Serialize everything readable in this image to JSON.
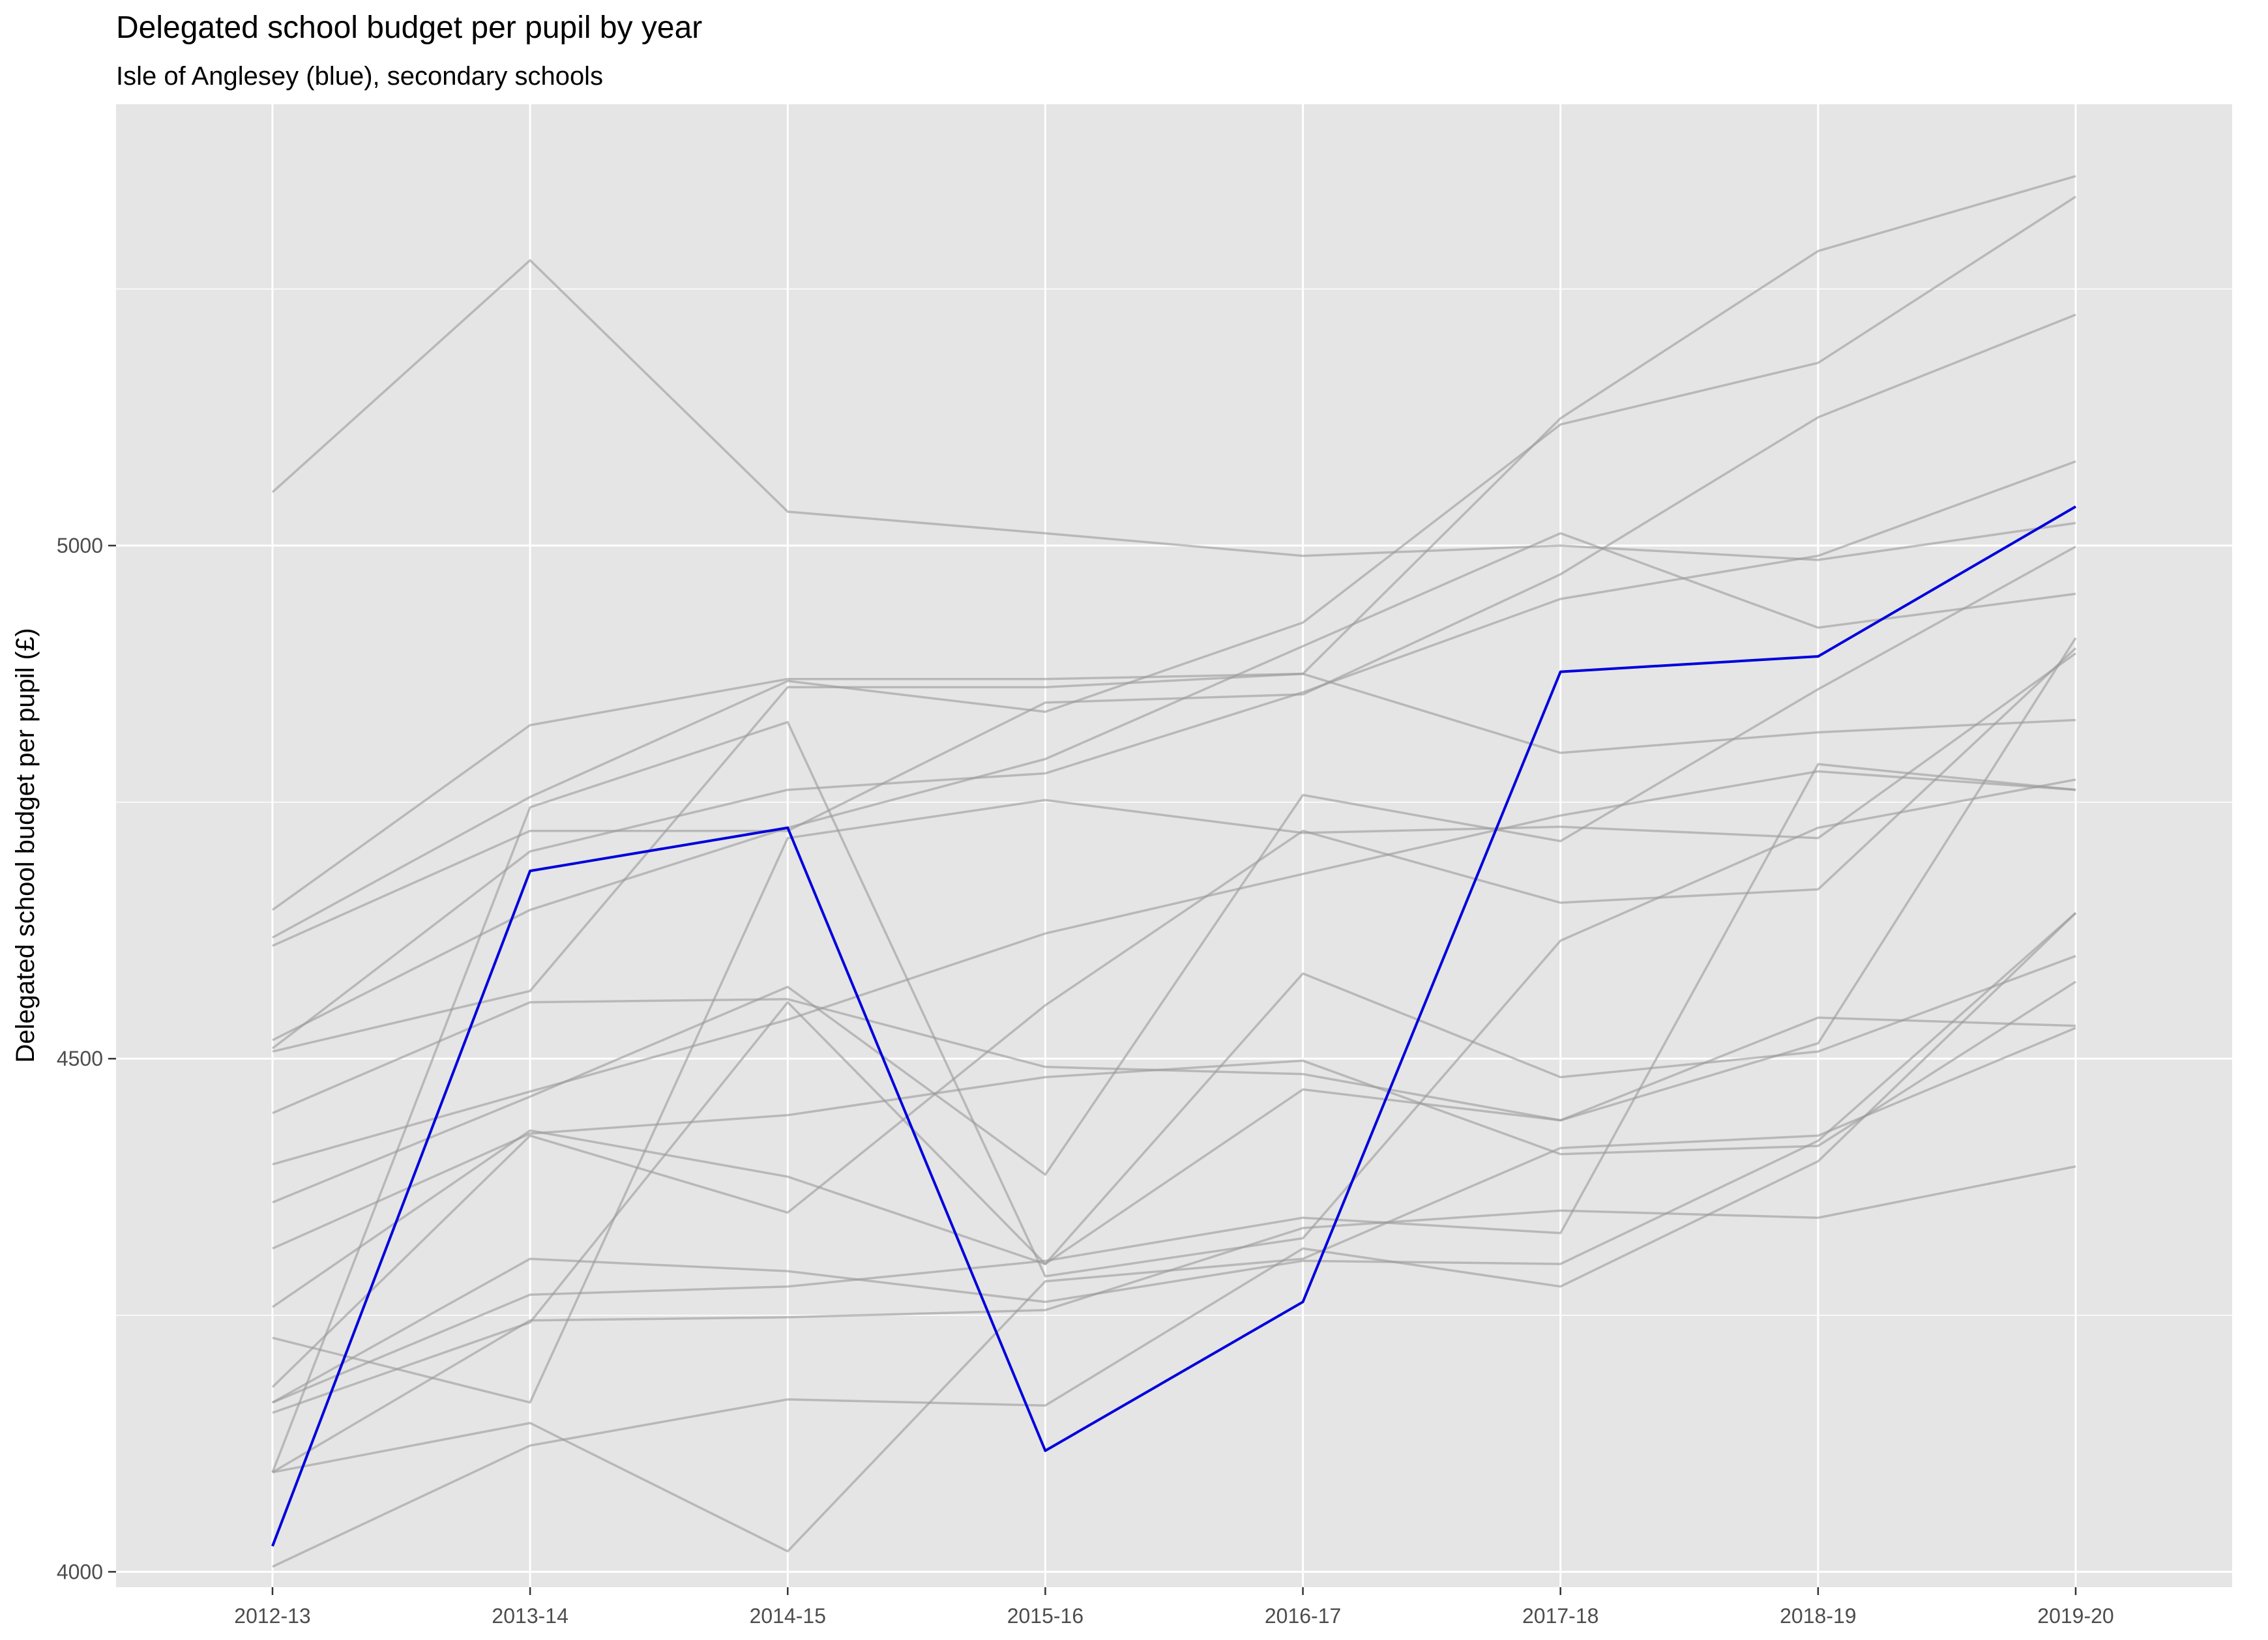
{
  "chart_data": {
    "type": "line",
    "title": "Delegated school budget per pupil by year",
    "subtitle": "Isle of Anglesey (blue), secondary schools",
    "xlabel": "",
    "ylabel": "Delegated school budget per pupil (£)",
    "categories": [
      "2012-13",
      "2013-14",
      "2014-15",
      "2015-16",
      "2016-17",
      "2017-18",
      "2018-19",
      "2019-20"
    ],
    "ylim": [
      3985,
      5430
    ],
    "y_ticks": [
      4000,
      4500,
      5000
    ],
    "y_tick_labels": [
      "4000",
      "4500",
      "5000"
    ],
    "grid": true,
    "legend": "none",
    "colors": {
      "panel": "#e5e5e5",
      "grid": "#ffffff",
      "highlight": "#0000dd",
      "other": "#999999"
    },
    "highlight_series": {
      "name": "Isle of Anglesey",
      "values": [
        4025,
        4683,
        4725,
        4118,
        4263,
        4877,
        4892,
        5038
      ]
    },
    "series": [
      {
        "values": [
          5052,
          5278,
          5033,
          5012,
          4990,
          5000,
          4986,
          5022
        ]
      },
      {
        "values": [
          4645,
          4825,
          4870,
          4870,
          4875,
          5124,
          5287,
          5360
        ]
      },
      {
        "values": [
          4618,
          4755,
          4868,
          4838,
          4925,
          5118,
          5178,
          5340
        ]
      },
      {
        "values": [
          4610,
          4722,
          4722,
          4847,
          4855,
          4972,
          5125,
          5225
        ]
      },
      {
        "values": [
          4518,
          4645,
          4725,
          4792,
          4902,
          5012,
          4920,
          4953
        ]
      },
      {
        "values": [
          4510,
          4702,
          4762,
          4778,
          4857,
          4948,
          4990,
          5082
        ]
      },
      {
        "values": [
          4507,
          4566,
          4862,
          4862,
          4875,
          4798,
          4818,
          4830
        ]
      },
      {
        "values": [
          4447,
          4555,
          4558,
          4492,
          4485,
          4440,
          4515,
          4910
        ]
      },
      {
        "values": [
          4397,
          4468,
          4538,
          4622,
          4680,
          4737,
          4780,
          4762
        ]
      },
      {
        "values": [
          4360,
          4463,
          4570,
          4387,
          4757,
          4712,
          4860,
          4999
        ]
      },
      {
        "values": [
          4315,
          4427,
          4445,
          4482,
          4498,
          4407,
          4415,
          4575
        ]
      },
      {
        "values": [
          4258,
          4430,
          4385,
          4300,
          4583,
          4482,
          4507,
          4600
        ]
      },
      {
        "values": [
          4228,
          4165,
          4715,
          4752,
          4720,
          4726,
          4715,
          4895
        ]
      },
      {
        "values": [
          4180,
          4425,
          4350,
          4552,
          4722,
          4652,
          4665,
          4900
        ]
      },
      {
        "values": [
          4165,
          4305,
          4293,
          4263,
          4303,
          4300,
          4420,
          4642
        ]
      },
      {
        "values": [
          4165,
          4270,
          4278,
          4303,
          4345,
          4330,
          4787,
          4762
        ]
      },
      {
        "values": [
          4155,
          4243,
          4555,
          4300,
          4470,
          4440,
          4540,
          4532
        ]
      },
      {
        "values": [
          4097,
          4245,
          4248,
          4255,
          4335,
          4352,
          4345,
          4395
        ]
      },
      {
        "values": [
          4097,
          4745,
          4828,
          4288,
          4325,
          4615,
          4725,
          4772
        ]
      },
      {
        "values": [
          4005,
          4123,
          4168,
          4162,
          4315,
          4278,
          4400,
          4642
        ]
      },
      {
        "values": [
          4097,
          4145,
          4020,
          4283,
          4305,
          4413,
          4425,
          4530
        ]
      }
    ]
  }
}
